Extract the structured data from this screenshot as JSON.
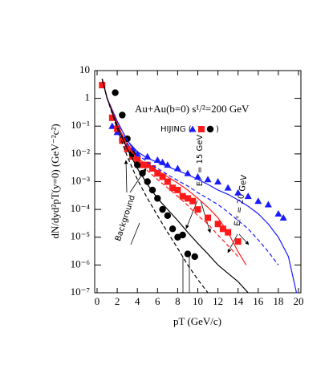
{
  "chart_data": {
    "type": "line",
    "title": "Au+Au(b=0)  s¹/²=200 GeV",
    "legend_title": "HIJING (",
    "legend_close": ")",
    "x_label": "pT (GeV/c)",
    "y_label": "dN/dyd²pT(y=0) (GeV⁻²c²)",
    "annotations": [
      "Background",
      "Eₜᵞ = 15 GeV",
      "Eₜᵞ = 20 GeV"
    ],
    "log_y": true,
    "xlim": [
      0,
      20
    ],
    "xticks": [
      0,
      2,
      4,
      6,
      8,
      10,
      12,
      14,
      16,
      18,
      20
    ],
    "ylim": [
      1e-07,
      10
    ],
    "yticks": [
      {
        "value": 1e-07,
        "label": "10⁻⁷"
      },
      {
        "value": 1e-06,
        "label": "10⁻⁶"
      },
      {
        "value": 1e-05,
        "label": "10⁻⁵"
      },
      {
        "value": 0.0001,
        "label": "10⁻⁴"
      },
      {
        "value": 0.001,
        "label": "10⁻³"
      },
      {
        "value": 0.01,
        "label": "10⁻²"
      },
      {
        "value": 0.1,
        "label": "10⁻¹"
      },
      1,
      10
    ],
    "series": [
      {
        "color": "#1a1aff",
        "marker": "triangle",
        "legend": true,
        "x": [
          1.5,
          2,
          2.5,
          3,
          3.5,
          4,
          5,
          6,
          6.5,
          7,
          8,
          9,
          10,
          11,
          12,
          13,
          14,
          15,
          16,
          17,
          18,
          18.5
        ],
        "values": [
          0.1,
          0.06,
          0.04,
          0.02,
          0.015,
          0.01,
          0.008,
          0.006,
          0.005,
          0.004,
          0.003,
          0.002,
          0.0015,
          0.0012,
          0.001,
          0.0006,
          0.0004,
          0.0003,
          0.0002,
          0.00015,
          7e-05,
          5e-05
        ]
      },
      {
        "color": "#ff1a1a",
        "marker": "square",
        "legend": true,
        "x": [
          0.5,
          1.5,
          2,
          2.5,
          3,
          3.5,
          4,
          4.5,
          5,
          5.5,
          6,
          6.5,
          7,
          7.5,
          8,
          8.5,
          9,
          9.5,
          10,
          11,
          12,
          12.5,
          13,
          14
        ],
        "values": [
          3,
          0.2,
          0.08,
          0.03,
          0.015,
          0.008,
          0.006,
          0.004,
          0.004,
          0.003,
          0.002,
          0.0015,
          0.001,
          0.0006,
          0.0005,
          0.0003,
          0.00025,
          0.0002,
          0.0001,
          5e-05,
          3e-05,
          2e-05,
          1.5e-05,
          7e-06
        ]
      },
      {
        "color": "#000000",
        "marker": "circle",
        "legend": true,
        "x": [
          1.8,
          2.5,
          3,
          3.5,
          4,
          4.5,
          5,
          5.5,
          6,
          6.5,
          7,
          7.5,
          8,
          8.5,
          9,
          9.7
        ],
        "values": [
          1.6,
          0.25,
          0.035,
          0.01,
          0.004,
          0.002,
          0.001,
          0.0005,
          0.00025,
          0.0001,
          6e-05,
          2e-05,
          1e-05,
          1.2e-05,
          2.5e-06,
          2e-06
        ]
      },
      {
        "color": "#1a1aff",
        "marker": "none",
        "dash": false,
        "x": [
          0.5,
          1,
          2,
          3,
          4,
          5,
          6,
          7,
          8,
          9,
          10,
          11,
          12,
          13,
          14,
          15,
          16,
          17,
          18,
          19,
          19.8
        ],
        "values": [
          5,
          1,
          0.15,
          0.03,
          0.012,
          0.007,
          0.005,
          0.0035,
          0.0025,
          0.0018,
          0.0012,
          0.0008,
          0.0005,
          0.00035,
          0.00022,
          0.00013,
          7e-05,
          3e-05,
          1e-05,
          2e-06,
          1e-07
        ]
      },
      {
        "color": "#1a1aff",
        "marker": "none",
        "dash": true,
        "x": [
          0.5,
          1,
          2,
          3,
          4,
          5,
          6,
          7,
          8,
          9,
          10,
          11,
          12,
          13,
          14,
          15,
          16,
          17,
          18
        ],
        "values": [
          5,
          1,
          0.15,
          0.03,
          0.01,
          0.005,
          0.003,
          0.0018,
          0.0011,
          0.0007,
          0.0004,
          0.00025,
          0.00015,
          8e-05,
          4e-05,
          2e-05,
          8e-06,
          3e-06,
          1e-06
        ]
      },
      {
        "color": "#ff1a1a",
        "marker": "none",
        "dash": false,
        "x": [
          0.5,
          1,
          2,
          3,
          4,
          5,
          6,
          7,
          8,
          9,
          10,
          11,
          12,
          13,
          14,
          14.8
        ],
        "values": [
          5,
          1,
          0.12,
          0.02,
          0.007,
          0.004,
          0.0025,
          0.0015,
          0.0009,
          0.0005,
          0.00025,
          0.00012,
          5e-05,
          1.5e-05,
          3e-06,
          1e-06
        ]
      },
      {
        "color": "#ff1a1a",
        "marker": "none",
        "dash": true,
        "x": [
          0.5,
          1,
          2,
          3,
          4,
          5,
          6,
          7,
          8,
          9,
          10,
          11,
          12,
          13,
          14
        ],
        "values": [
          5,
          1,
          0.12,
          0.02,
          0.006,
          0.0025,
          0.0012,
          0.0006,
          0.0003,
          0.00014,
          6e-05,
          3e-05,
          1.2e-05,
          5e-06,
          2e-06
        ]
      },
      {
        "color": "#000000",
        "marker": "none",
        "dash": false,
        "x": [
          0.5,
          1,
          2,
          3,
          4,
          5,
          6,
          7,
          8,
          9,
          10,
          11,
          12,
          13,
          14,
          15
        ],
        "values": [
          5,
          1,
          0.1,
          0.015,
          0.003,
          0.0008,
          0.00025,
          0.0001,
          4e-05,
          1.5e-05,
          6e-06,
          2.5e-06,
          1e-06,
          5e-07,
          2.5e-07,
          1e-07
        ]
      },
      {
        "color": "#000000",
        "marker": "none",
        "dash": true,
        "x": [
          0.5,
          1,
          2,
          3,
          4,
          5,
          6,
          7,
          8,
          9,
          10,
          11
        ],
        "values": [
          5,
          1,
          0.08,
          0.008,
          0.0012,
          0.00025,
          6e-05,
          1.5e-05,
          4e-06,
          1e-06,
          3e-07,
          1e-07
        ]
      }
    ]
  }
}
